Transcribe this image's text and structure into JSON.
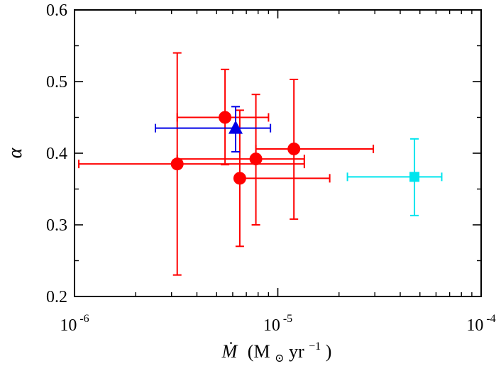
{
  "chart_data": {
    "type": "scatter",
    "title": "",
    "xlabel": {
      "symbol": "Ṁ",
      "open_paren": "(M",
      "sub": "⊙",
      "mid": " yr",
      "sup": "−1",
      "close_paren": ")"
    },
    "ylabel": "α",
    "x_scale": "log",
    "xlim": [
      1e-06,
      0.0001
    ],
    "ylim": [
      0.2,
      0.6
    ],
    "x_ticks": [
      {
        "value": 1e-06,
        "base": "10",
        "exp": "-6"
      },
      {
        "value": 1e-05,
        "base": "10",
        "exp": "-5"
      },
      {
        "value": 0.0001,
        "base": "10",
        "exp": "-4"
      }
    ],
    "y_ticks": [
      {
        "value": 0.2,
        "label": "0.2"
      },
      {
        "value": 0.3,
        "label": "0.3"
      },
      {
        "value": 0.4,
        "label": "0.4"
      },
      {
        "value": 0.5,
        "label": "0.5"
      },
      {
        "value": 0.6,
        "label": "0.6"
      }
    ],
    "grid": false,
    "legend": "none",
    "series": [
      {
        "name": "red-circles",
        "marker": "circle",
        "color": "#ff0000",
        "points": [
          {
            "x": 3.2e-06,
            "y": 0.385,
            "xlo": 1.05e-06,
            "xhi": 1.35e-05,
            "ylo": 0.23,
            "yhi": 0.54
          },
          {
            "x": 5.5e-06,
            "y": 0.45,
            "xlo": 3.2e-06,
            "xhi": 9e-06,
            "ylo": 0.384,
            "yhi": 0.517
          },
          {
            "x": 6.5e-06,
            "y": 0.365,
            "xlo": 6.5e-06,
            "xhi": 1.8e-05,
            "ylo": 0.27,
            "yhi": 0.46
          },
          {
            "x": 7.8e-06,
            "y": 0.392,
            "xlo": 3.2e-06,
            "xhi": 1.35e-05,
            "ylo": 0.3,
            "yhi": 0.482
          },
          {
            "x": 1.2e-05,
            "y": 0.406,
            "xlo": 7.8e-06,
            "xhi": 2.95e-05,
            "ylo": 0.308,
            "yhi": 0.503
          }
        ]
      },
      {
        "name": "blue-triangle",
        "marker": "triangle",
        "color": "#0000e6",
        "points": [
          {
            "x": 6.2e-06,
            "y": 0.435,
            "xlo": 2.5e-06,
            "xhi": 9.2e-06,
            "ylo": 0.402,
            "yhi": 0.465
          }
        ]
      },
      {
        "name": "cyan-square",
        "marker": "square",
        "color": "#00e5ee",
        "points": [
          {
            "x": 4.7e-05,
            "y": 0.367,
            "xlo": 2.2e-05,
            "xhi": 6.4e-05,
            "ylo": 0.313,
            "yhi": 0.42
          }
        ]
      }
    ]
  }
}
